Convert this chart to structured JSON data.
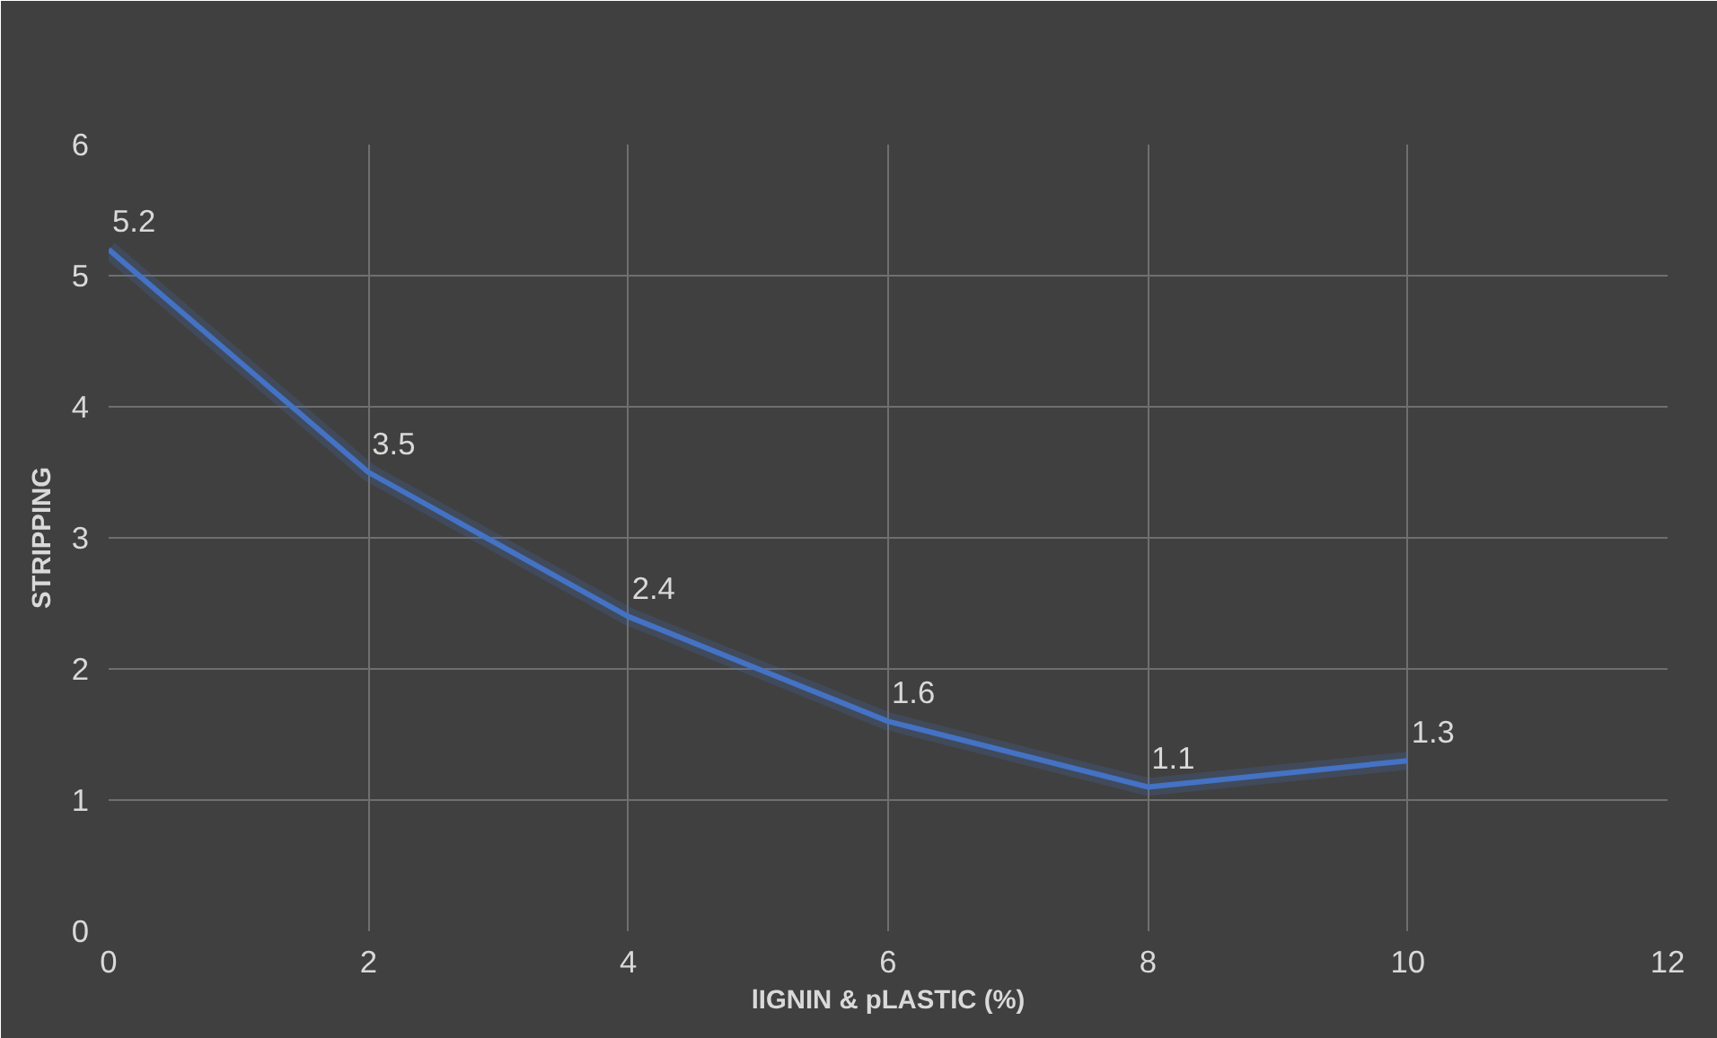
{
  "chart_data": {
    "type": "line",
    "xlabel": "lIGNIN & pLASTIC (%)",
    "ylabel": "STRIPPING",
    "x": [
      0,
      2,
      4,
      6,
      8,
      10
    ],
    "series": [
      {
        "color": "#4472c4",
        "values": [
          5.2,
          3.5,
          2.4,
          1.6,
          1.1,
          1.3
        ]
      }
    ],
    "xlim": [
      0,
      12
    ],
    "ylim": [
      0,
      6
    ],
    "xticks": [
      0,
      2,
      4,
      6,
      8,
      10,
      12
    ],
    "yticks": [
      0,
      1,
      2,
      3,
      4,
      5,
      6
    ],
    "grid": true,
    "data_labels": true,
    "marker": "none",
    "line_style": "solid"
  }
}
